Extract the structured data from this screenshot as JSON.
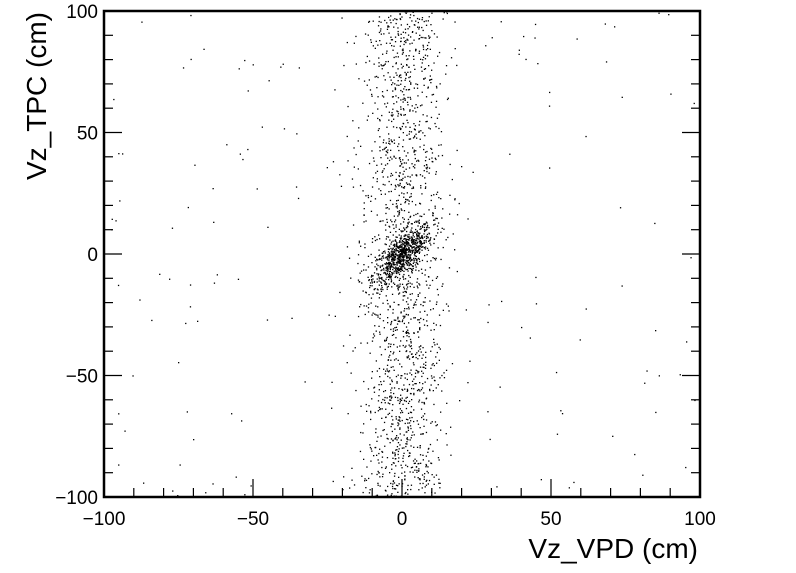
{
  "chart_data": {
    "type": "scatter",
    "title": "",
    "xlabel": "Vz_VPD (cm)",
    "ylabel": "Vz_TPC (cm)",
    "xlim": [
      -100,
      100
    ],
    "ylim": [
      -100,
      100
    ],
    "x_ticks": [
      -100,
      -50,
      0,
      50,
      100
    ],
    "y_ticks": [
      -100,
      -50,
      0,
      50,
      100
    ],
    "x_tick_labels": [
      "−100",
      "−50",
      "0",
      "50",
      "100"
    ],
    "y_tick_labels": [
      "−100",
      "−50",
      "0",
      "50",
      "100"
    ],
    "grid": false,
    "legend": "none",
    "marker_color": "#000000",
    "distribution": {
      "core": {
        "x_mean": 0,
        "y_mean": 0,
        "x_sd": 5,
        "y_sd": 6,
        "correlation": 0.7
      },
      "band": {
        "x_mean": 0,
        "x_sd": 7,
        "y_range": [
          -100,
          100
        ]
      },
      "background": {
        "x_range": [
          -100,
          100
        ],
        "y_range": [
          -100,
          100
        ]
      }
    }
  }
}
